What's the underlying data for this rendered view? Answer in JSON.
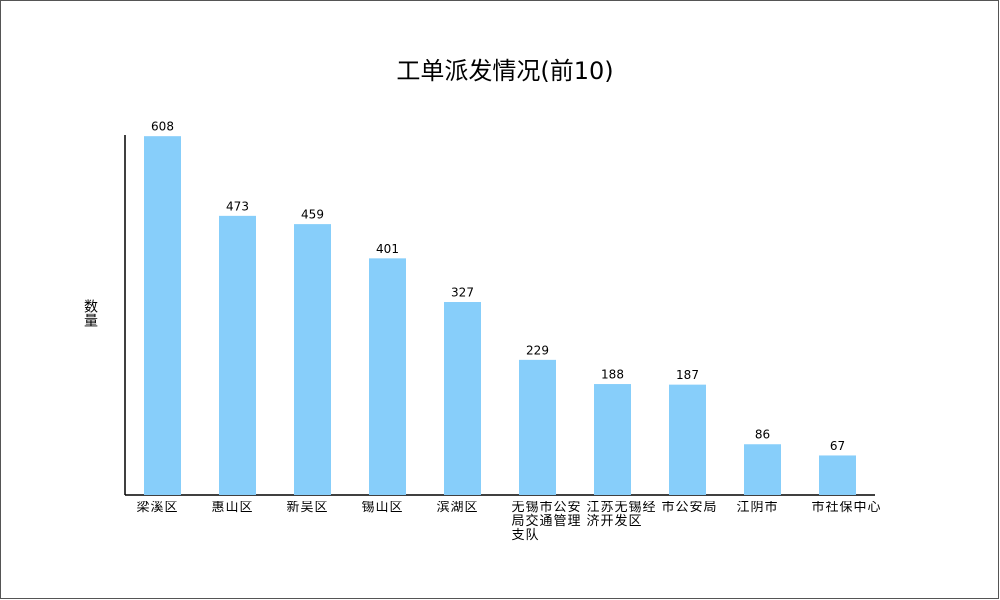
{
  "chart_data": {
    "type": "bar",
    "title": "工单派发情况(前10)",
    "y_label": "数量",
    "categories": [
      "梁溪区",
      "惠山区",
      "新吴区",
      "锡山区",
      "滨湖区",
      "无锡市公安局交通管理支队",
      "江苏无锡经济开发区",
      "市公安局",
      "江阴市",
      "市社保中心"
    ],
    "values": [
      608,
      473,
      459,
      401,
      327,
      229,
      188,
      187,
      86,
      67
    ],
    "color": "#87cefa",
    "ylim": [
      0,
      610
    ]
  }
}
